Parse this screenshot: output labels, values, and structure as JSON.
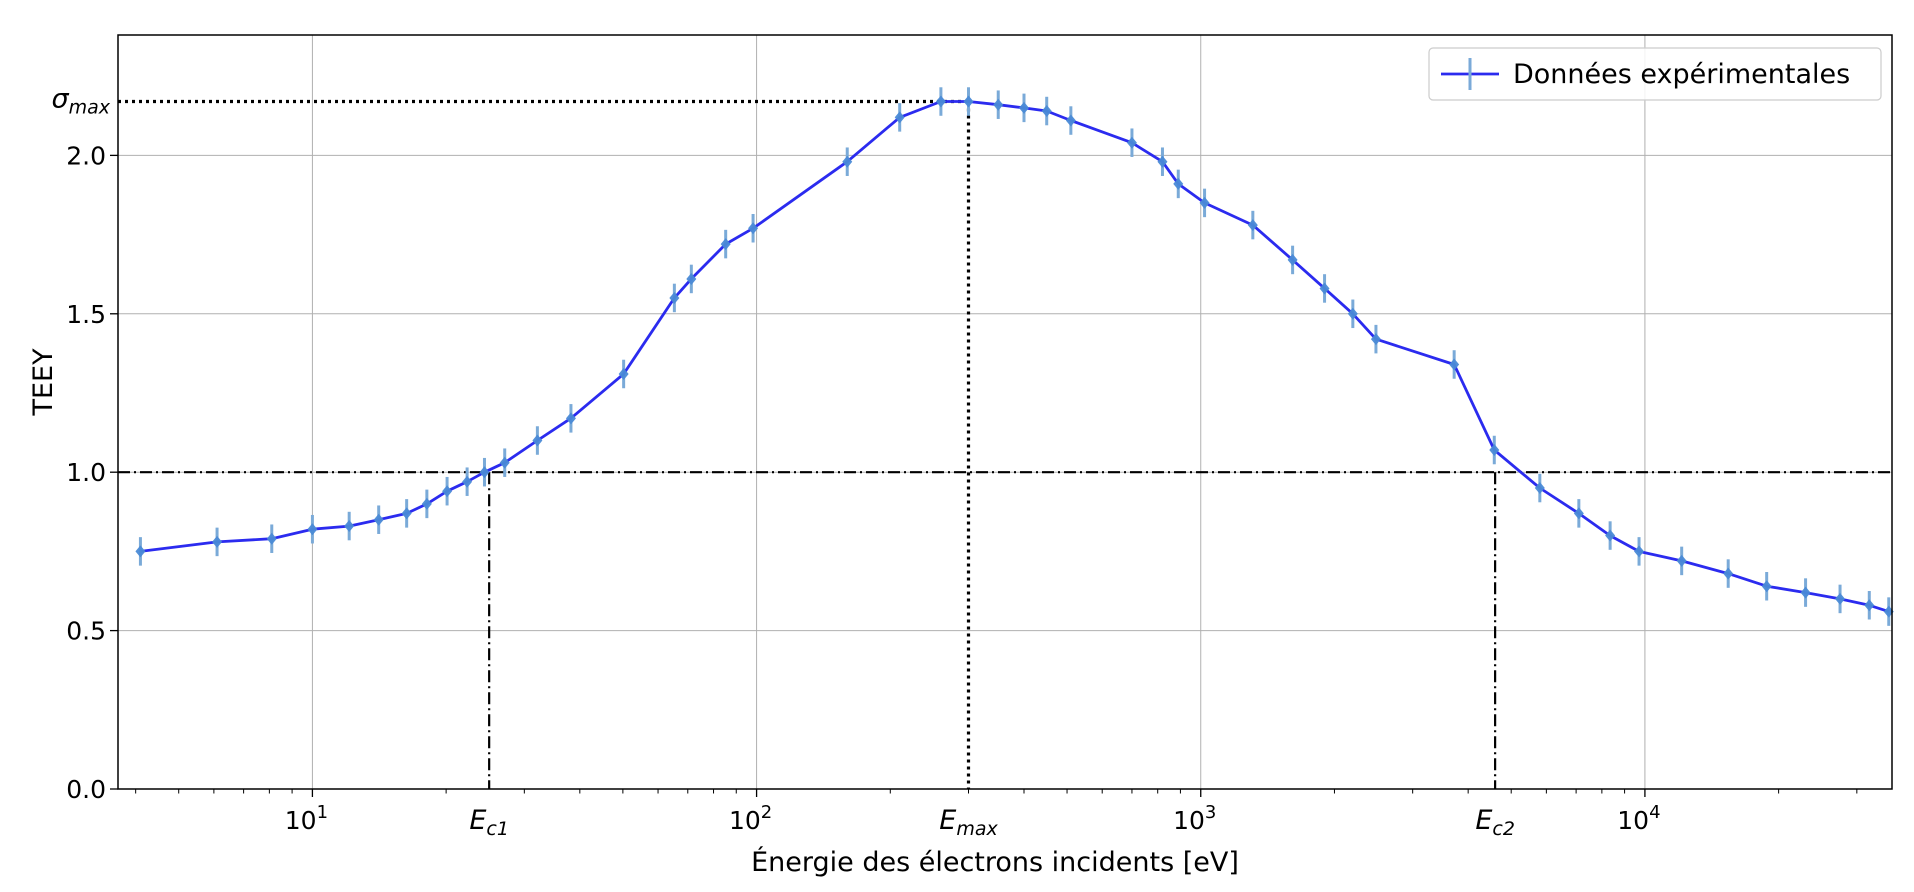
{
  "chart_data": {
    "type": "line",
    "title": "",
    "xlabel": "Énergie des électrons incidents [eV]",
    "ylabel": "TEEY",
    "x_scale": "log",
    "xlim": [
      3.65,
      36000
    ],
    "ylim": [
      0,
      2.38
    ],
    "grid": true,
    "legend_position": "top-right",
    "x_major_ticks": [
      {
        "value": 10,
        "base": "10",
        "exp": "1"
      },
      {
        "value": 100,
        "base": "10",
        "exp": "2"
      },
      {
        "value": 1000,
        "base": "10",
        "exp": "3"
      },
      {
        "value": 10000,
        "base": "10",
        "exp": "4"
      }
    ],
    "y_ticks": [
      {
        "value": 0.0,
        "label": "0.0"
      },
      {
        "value": 0.5,
        "label": "0.5"
      },
      {
        "value": 1.0,
        "label": "1.0"
      },
      {
        "value": 1.5,
        "label": "1.5"
      },
      {
        "value": 2.0,
        "label": "2.0"
      }
    ],
    "series": [
      {
        "name": "Données expérimentales",
        "line_color": "#2b2bef",
        "marker_color": "#4a8ad6",
        "errorbar_color": "#7aaad8",
        "error": 0.045,
        "x": [
          4.1,
          6.1,
          8.1,
          10.0,
          12.1,
          14.1,
          16.3,
          18.1,
          20.1,
          22.3,
          24.4,
          27.1,
          32.1,
          38.2,
          50.2,
          65.3,
          71.3,
          85.2,
          98.2,
          160,
          210,
          260,
          300,
          350,
          400,
          450,
          510,
          700,
          820,
          890,
          1020,
          1310,
          1610,
          1900,
          2200,
          2480,
          3720,
          4580,
          5800,
          7100,
          8350,
          9700,
          12100,
          15400,
          18800,
          23000,
          27500,
          32000,
          35400
        ],
        "y": [
          0.75,
          0.78,
          0.79,
          0.82,
          0.83,
          0.85,
          0.87,
          0.9,
          0.94,
          0.97,
          1.0,
          1.03,
          1.1,
          1.17,
          1.31,
          1.55,
          1.61,
          1.72,
          1.77,
          1.98,
          2.12,
          2.17,
          2.17,
          2.16,
          2.15,
          2.14,
          2.11,
          2.04,
          1.98,
          1.91,
          1.85,
          1.78,
          1.67,
          1.58,
          1.5,
          1.42,
          1.34,
          1.07,
          0.95,
          0.87,
          0.8,
          0.75,
          0.72,
          0.68,
          0.64,
          0.62,
          0.6,
          0.58,
          0.56
        ]
      }
    ],
    "reference_lines": {
      "sigma_max": {
        "value": 2.17,
        "label_base": "σ",
        "label_sub": "max"
      },
      "unity": {
        "value": 1.0
      },
      "Ec1": {
        "value": 25.0,
        "label_base": "E",
        "label_sub": "c1"
      },
      "Emax": {
        "value": 300.0,
        "label_base": "E",
        "label_sub": "max"
      },
      "Ec2": {
        "value": 4600.0,
        "label_base": "E",
        "label_sub": "c2"
      }
    }
  }
}
